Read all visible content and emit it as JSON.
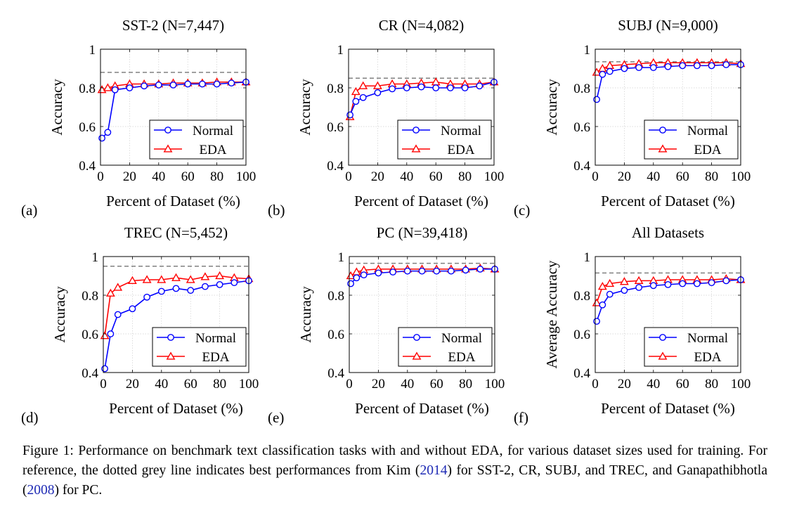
{
  "colors": {
    "normal": "#0000ff",
    "eda": "#ff0000",
    "reference_line": "#808080",
    "link": "#1f2bb5"
  },
  "chart_data": [
    {
      "type": "line",
      "panel_label": "(a)",
      "title": "SST-2 (N=7,447)",
      "xlabel": "Percent of Dataset (%)",
      "ylabel": "Accuracy",
      "xlim": [
        0,
        100
      ],
      "ylim": [
        0.4,
        1
      ],
      "xticks": [
        "0",
        "20",
        "40",
        "60",
        "80",
        "100"
      ],
      "yticks": [
        "0.4",
        "0.6",
        "0.8",
        "1"
      ],
      "reference": 0.88,
      "grid": true,
      "legend_position": "lower-right",
      "x": [
        1,
        5,
        10,
        20,
        30,
        40,
        50,
        60,
        70,
        80,
        90,
        100
      ],
      "series": [
        {
          "name": "Normal",
          "marker": "circle",
          "values": [
            0.54,
            0.57,
            0.79,
            0.8,
            0.81,
            0.815,
            0.815,
            0.82,
            0.82,
            0.82,
            0.825,
            0.83
          ]
        },
        {
          "name": "EDA",
          "marker": "triangle",
          "values": [
            0.79,
            0.8,
            0.81,
            0.82,
            0.82,
            0.82,
            0.825,
            0.825,
            0.825,
            0.83,
            0.83,
            0.83
          ]
        }
      ]
    },
    {
      "type": "line",
      "panel_label": "(b)",
      "title": "CR (N=4,082)",
      "xlabel": "Percent of Dataset (%)",
      "ylabel": "Accuracy",
      "xlim": [
        0,
        100
      ],
      "ylim": [
        0.4,
        1
      ],
      "xticks": [
        "0",
        "20",
        "40",
        "60",
        "80",
        "100"
      ],
      "yticks": [
        "0.4",
        "0.6",
        "0.8",
        "1"
      ],
      "reference": 0.85,
      "grid": true,
      "legend_position": "lower-right",
      "x": [
        1,
        5,
        10,
        20,
        30,
        40,
        50,
        60,
        70,
        80,
        90,
        100
      ],
      "series": [
        {
          "name": "Normal",
          "marker": "circle",
          "values": [
            0.66,
            0.73,
            0.75,
            0.775,
            0.795,
            0.8,
            0.805,
            0.8,
            0.8,
            0.8,
            0.81,
            0.83
          ]
        },
        {
          "name": "EDA",
          "marker": "triangle",
          "values": [
            0.65,
            0.78,
            0.81,
            0.81,
            0.82,
            0.82,
            0.825,
            0.83,
            0.82,
            0.82,
            0.82,
            0.83
          ]
        }
      ]
    },
    {
      "type": "line",
      "panel_label": "(c)",
      "title": "SUBJ (N=9,000)",
      "xlabel": "Percent of Dataset (%)",
      "ylabel": "Accuracy",
      "xlim": [
        0,
        100
      ],
      "ylim": [
        0.4,
        1
      ],
      "xticks": [
        "0",
        "20",
        "40",
        "60",
        "80",
        "100"
      ],
      "yticks": [
        "0.4",
        "0.6",
        "0.8",
        "1"
      ],
      "reference": 0.935,
      "grid": true,
      "legend_position": "lower-right",
      "x": [
        1,
        5,
        10,
        20,
        30,
        40,
        50,
        60,
        70,
        80,
        90,
        100
      ],
      "series": [
        {
          "name": "Normal",
          "marker": "circle",
          "values": [
            0.74,
            0.87,
            0.885,
            0.9,
            0.905,
            0.905,
            0.91,
            0.915,
            0.915,
            0.915,
            0.92,
            0.92
          ]
        },
        {
          "name": "EDA",
          "marker": "triangle",
          "values": [
            0.88,
            0.9,
            0.915,
            0.92,
            0.925,
            0.93,
            0.93,
            0.93,
            0.93,
            0.93,
            0.93,
            0.925
          ]
        }
      ]
    },
    {
      "type": "line",
      "panel_label": "(d)",
      "title": "TREC (N=5,452)",
      "xlabel": "Percent of Dataset (%)",
      "ylabel": "Accuracy",
      "xlim": [
        0,
        100
      ],
      "ylim": [
        0.4,
        1
      ],
      "xticks": [
        "0",
        "20",
        "40",
        "60",
        "80",
        "100"
      ],
      "yticks": [
        "0.4",
        "0.6",
        "0.8",
        "1"
      ],
      "reference": 0.95,
      "grid": true,
      "legend_position": "lower-right",
      "x": [
        1,
        5,
        10,
        20,
        30,
        40,
        50,
        60,
        70,
        80,
        90,
        100
      ],
      "series": [
        {
          "name": "Normal",
          "marker": "circle",
          "values": [
            0.42,
            0.6,
            0.7,
            0.73,
            0.79,
            0.82,
            0.835,
            0.825,
            0.845,
            0.855,
            0.865,
            0.875
          ]
        },
        {
          "name": "EDA",
          "marker": "triangle",
          "values": [
            0.59,
            0.81,
            0.84,
            0.875,
            0.88,
            0.88,
            0.89,
            0.88,
            0.895,
            0.9,
            0.89,
            0.885
          ]
        }
      ]
    },
    {
      "type": "line",
      "panel_label": "(e)",
      "title": "PC (N=39,418)",
      "xlabel": "Percent of Dataset (%)",
      "ylabel": "Accuracy",
      "xlim": [
        0,
        100
      ],
      "ylim": [
        0.4,
        1
      ],
      "xticks": [
        "0",
        "20",
        "40",
        "60",
        "80",
        "100"
      ],
      "yticks": [
        "0.4",
        "0.6",
        "0.8",
        "1"
      ],
      "reference": 0.965,
      "grid": true,
      "legend_position": "lower-right",
      "x": [
        1,
        5,
        10,
        20,
        30,
        40,
        50,
        60,
        70,
        80,
        90,
        100
      ],
      "series": [
        {
          "name": "Normal",
          "marker": "circle",
          "values": [
            0.86,
            0.89,
            0.905,
            0.915,
            0.92,
            0.925,
            0.925,
            0.925,
            0.925,
            0.93,
            0.935,
            0.935
          ]
        },
        {
          "name": "EDA",
          "marker": "triangle",
          "values": [
            0.9,
            0.92,
            0.93,
            0.935,
            0.935,
            0.935,
            0.935,
            0.935,
            0.935,
            0.935,
            0.94,
            0.935
          ]
        }
      ]
    },
    {
      "type": "line",
      "panel_label": "(f)",
      "title": "All Datasets",
      "xlabel": "Percent of Dataset (%)",
      "ylabel": "Average Accuracy",
      "xlim": [
        0,
        100
      ],
      "ylim": [
        0.4,
        1
      ],
      "xticks": [
        "0",
        "20",
        "40",
        "60",
        "80",
        "100"
      ],
      "yticks": [
        "0.4",
        "0.6",
        "0.8",
        "1"
      ],
      "reference": 0.915,
      "grid": true,
      "legend_position": "lower-right",
      "x": [
        1,
        5,
        10,
        20,
        30,
        40,
        50,
        60,
        70,
        80,
        90,
        100
      ],
      "series": [
        {
          "name": "Normal",
          "marker": "circle",
          "values": [
            0.665,
            0.75,
            0.805,
            0.825,
            0.84,
            0.85,
            0.855,
            0.86,
            0.86,
            0.865,
            0.875,
            0.88
          ]
        },
        {
          "name": "EDA",
          "marker": "triangle",
          "values": [
            0.76,
            0.845,
            0.86,
            0.87,
            0.875,
            0.875,
            0.88,
            0.88,
            0.88,
            0.88,
            0.885,
            0.88
          ]
        }
      ]
    }
  ],
  "caption": {
    "label": "Figure 1:",
    "text_1": " Performance on benchmark text classification tasks with and without EDA, for various dataset sizes used for training. For reference, the dotted grey line indicates best performances from Kim (",
    "ref_1": "2014",
    "text_2": ") for SST-2, CR, SUBJ, and TREC, and Ganapathibhotla (",
    "ref_2": "2008",
    "text_3": ") for PC."
  }
}
